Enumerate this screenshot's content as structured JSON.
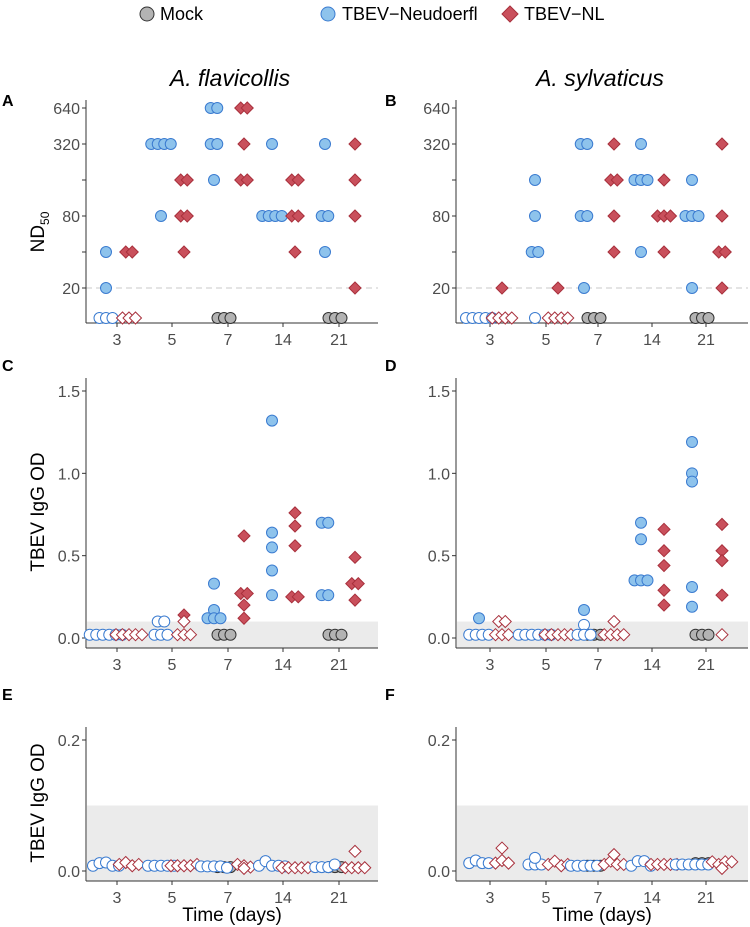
{
  "chart_data": {
    "type": "scatter",
    "legend": [
      {
        "name": "Mock",
        "shape": "circle",
        "fill": "#b3b3b3",
        "stroke": "#333333"
      },
      {
        "name": "TBEV−Neudoerfl",
        "shape": "circle",
        "fill": "#8ec3ec",
        "stroke": "#3a7bd0"
      },
      {
        "name": "TBEV−NL",
        "shape": "diamond",
        "fill": "#c9505c",
        "stroke": "#a8303c"
      }
    ],
    "legend_position": "top",
    "days": [
      "3",
      "5",
      "7",
      "14",
      "21"
    ],
    "xlabel": "Time (days)",
    "panels": [
      {
        "id": "A",
        "title": "A. flavicollis",
        "ylabel": "ND",
        "ylabel_sub": "50",
        "scale": "log2",
        "yticks": [
          20,
          40,
          80,
          160,
          320,
          640
        ],
        "ytick_labels": [
          "20",
          "",
          "80",
          "",
          "320",
          "640"
        ],
        "threshold_line": 20,
        "open_means": "below detection",
        "points": {
          "Mock": {
            "7": {
              "filled": [
                10,
                10,
                10
              ]
            },
            "21": {
              "filled": [
                10,
                10,
                10
              ]
            }
          },
          "Neudoerfl": {
            "3": {
              "filled": [
                40,
                20
              ],
              "open": [
                10,
                10,
                10
              ]
            },
            "5": {
              "filled": [
                320,
                320,
                320,
                320,
                80
              ]
            },
            "7": {
              "filled": [
                640,
                640,
                320,
                320,
                160
              ]
            },
            "14": {
              "filled": [
                320,
                80,
                80,
                80,
                80
              ]
            },
            "21": {
              "filled": [
                320,
                80,
                80,
                40
              ]
            }
          },
          "NL": {
            "3": {
              "filled": [
                40,
                40
              ],
              "open": [
                10,
                10,
                10
              ]
            },
            "5": {
              "filled": [
                160,
                160,
                80,
                80,
                40
              ]
            },
            "7": {
              "filled": [
                640,
                640,
                320,
                160,
                160
              ]
            },
            "14": {
              "filled": [
                160,
                160,
                80,
                80,
                40
              ]
            },
            "21": {
              "filled": [
                320,
                160,
                80,
                20
              ]
            }
          }
        }
      },
      {
        "id": "B",
        "title": "A. sylvaticus",
        "ylabel": "",
        "scale": "log2",
        "yticks": [
          20,
          40,
          80,
          160,
          320,
          640
        ],
        "ytick_labels": [
          "20",
          "",
          "80",
          "",
          "320",
          "640"
        ],
        "threshold_line": 20,
        "points": {
          "Mock": {
            "7": {
              "filled": [
                10,
                10,
                10
              ]
            },
            "21": {
              "filled": [
                10,
                10,
                10
              ]
            }
          },
          "Neudoerfl": {
            "3": {
              "open": [
                10,
                10,
                10,
                10,
                10
              ]
            },
            "5": {
              "filled": [
                160,
                80,
                40,
                40
              ],
              "open": [
                10
              ]
            },
            "7": {
              "filled": [
                320,
                320,
                80,
                80,
                20
              ]
            },
            "14": {
              "filled": [
                320,
                160,
                160,
                160,
                40
              ]
            },
            "21": {
              "filled": [
                160,
                80,
                80,
                80,
                20
              ]
            }
          },
          "NL": {
            "3": {
              "filled": [
                20
              ],
              "open": [
                10,
                10,
                10,
                10
              ]
            },
            "5": {
              "filled": [
                20
              ],
              "open": [
                10,
                10,
                10,
                10
              ]
            },
            "7": {
              "filled": [
                320,
                160,
                160,
                80,
                40
              ]
            },
            "14": {
              "filled": [
                160,
                80,
                80,
                80,
                40
              ]
            },
            "21": {
              "filled": [
                320,
                80,
                40,
                40,
                20
              ]
            }
          }
        }
      },
      {
        "id": "C",
        "title": "",
        "ylabel": "TBEV IgG OD",
        "scale": "linear",
        "ylim": [
          0,
          1.5
        ],
        "yticks": [
          0,
          0.5,
          1.0,
          1.5
        ],
        "ytick_labels": [
          "0.0",
          "0.5",
          "1.0",
          "1.5"
        ],
        "cutoff_band": [
          0,
          0.1
        ],
        "points": {
          "Mock": {
            "7": {
              "filled": [
                0.02,
                0.02,
                0.02
              ]
            },
            "21": {
              "filled": [
                0.02,
                0.02,
                0.02
              ]
            }
          },
          "Neudoerfl": {
            "3": {
              "open": [
                0.02,
                0.02,
                0.02,
                0.02,
                0.02,
                0.02
              ]
            },
            "5": {
              "open": [
                0.1,
                0.1,
                0.02,
                0.02,
                0.02
              ]
            },
            "7": {
              "filled": [
                0.33,
                0.17,
                0.12,
                0.12,
                0.12
              ]
            },
            "14": {
              "filled": [
                1.32,
                0.64,
                0.55,
                0.41,
                0.26
              ]
            },
            "21": {
              "filled": [
                0.7,
                0.7,
                0.26,
                0.26
              ]
            }
          },
          "NL": {
            "3": {
              "open": [
                0.02,
                0.02,
                0.02,
                0.02,
                0.02
              ]
            },
            "5": {
              "filled": [
                0.14
              ],
              "open": [
                0.1,
                0.02,
                0.02,
                0.02
              ]
            },
            "7": {
              "filled": [
                0.62,
                0.27,
                0.27,
                0.2,
                0.12
              ]
            },
            "14": {
              "filled": [
                0.76,
                0.68,
                0.56,
                0.25,
                0.25
              ]
            },
            "21": {
              "filled": [
                0.49,
                0.33,
                0.33,
                0.23
              ]
            }
          }
        }
      },
      {
        "id": "D",
        "title": "",
        "ylabel": "",
        "scale": "linear",
        "ylim": [
          0,
          1.5
        ],
        "yticks": [
          0,
          0.5,
          1.0,
          1.5
        ],
        "ytick_labels": [
          "0.0",
          "0.5",
          "1.0",
          "1.5"
        ],
        "cutoff_band": [
          0,
          0.1
        ],
        "points": {
          "Mock": {
            "7": {
              "filled": [
                0.02,
                0.02,
                0.02
              ]
            },
            "21": {
              "filled": [
                0.02,
                0.02,
                0.02
              ]
            }
          },
          "Neudoerfl": {
            "3": {
              "filled": [
                0.12
              ],
              "open": [
                0.02,
                0.02,
                0.02,
                0.02
              ]
            },
            "5": {
              "open": [
                0.02,
                0.02,
                0.02,
                0.02,
                0.02,
                0.02
              ]
            },
            "7": {
              "filled": [
                0.17
              ],
              "open": [
                0.08,
                0.02,
                0.02,
                0.02
              ]
            },
            "14": {
              "filled": [
                0.7,
                0.6,
                0.35,
                0.35,
                0.35
              ]
            },
            "21": {
              "filled": [
                1.19,
                1.0,
                0.95,
                0.31,
                0.19
              ]
            }
          },
          "NL": {
            "3": {
              "open": [
                0.1,
                0.1,
                0.02,
                0.02,
                0.02
              ]
            },
            "5": {
              "open": [
                0.02,
                0.02,
                0.02,
                0.02,
                0.02
              ]
            },
            "7": {
              "open": [
                0.1,
                0.02,
                0.02,
                0.02,
                0.02
              ]
            },
            "14": {
              "filled": [
                0.66,
                0.53,
                0.44,
                0.29,
                0.2
              ]
            },
            "21": {
              "filled": [
                0.69,
                0.53,
                0.47,
                0.26
              ],
              "open": [
                0.02
              ]
            }
          }
        }
      },
      {
        "id": "E",
        "title": "",
        "ylabel": "TBEV IgG OD",
        "scale": "linear",
        "ylim": [
          0,
          0.2
        ],
        "yticks": [
          0,
          0.2
        ],
        "ytick_labels": [
          "0.0",
          "0.2"
        ],
        "cutoff_band": [
          0,
          0.1
        ],
        "points": {
          "Mock": {
            "7": {
              "filled": [
                0.006,
                0.006,
                0.006
              ]
            },
            "21": {
              "filled": [
                0.006,
                0.006,
                0.006
              ]
            }
          },
          "Neudoerfl": {
            "3": {
              "open": [
                0.008,
                0.012,
                0.013,
                0.008,
                0.008
              ]
            },
            "5": {
              "open": [
                0.008,
                0.008,
                0.008,
                0.008,
                0.008
              ]
            },
            "7": {
              "open": [
                0.007,
                0.007,
                0.007,
                0.007,
                0.005
              ]
            },
            "14": {
              "open": [
                0.008,
                0.015,
                0.008,
                0.008,
                0.007
              ]
            },
            "21": {
              "open": [
                0.006,
                0.006,
                0.006,
                0.01
              ]
            }
          },
          "NL": {
            "3": {
              "open": [
                0.01,
                0.013,
                0.008,
                0.01
              ]
            },
            "5": {
              "open": [
                0.008,
                0.008,
                0.008,
                0.008,
                0.01
              ]
            },
            "7": {
              "open": [
                0.01,
                0.008,
                0.006,
                0.004
              ]
            },
            "14": {
              "open": [
                0.005,
                0.005,
                0.005,
                0.005,
                0.005
              ]
            },
            "21": {
              "open": [
                0.005,
                0.005,
                0.005,
                0.005,
                0.03
              ]
            }
          }
        }
      },
      {
        "id": "F",
        "title": "",
        "ylabel": "",
        "scale": "linear",
        "ylim": [
          0,
          0.2
        ],
        "yticks": [
          0,
          0.2
        ],
        "ytick_labels": [
          "0.0",
          "0.2"
        ],
        "cutoff_band": [
          0,
          0.1
        ],
        "points": {
          "Mock": {
            "7": {
              "filled": [
                0.008,
                0.008,
                0.008
              ]
            },
            "21": {
              "filled": [
                0.012,
                0.012,
                0.012
              ]
            }
          },
          "Neudoerfl": {
            "3": {
              "open": [
                0.012,
                0.016,
                0.012,
                0.012
              ]
            },
            "5": {
              "open": [
                0.01,
                0.02,
                0.01,
                0.01
              ]
            },
            "7": {
              "open": [
                0.008,
                0.008,
                0.008,
                0.008,
                0.008
              ]
            },
            "14": {
              "open": [
                0.008,
                0.015,
                0.015,
                0.008
              ]
            },
            "21": {
              "open": [
                0.01,
                0.01,
                0.01,
                0.01,
                0.01,
                0.01
              ]
            }
          },
          "NL": {
            "3": {
              "open": [
                0.012,
                0.016,
                0.035,
                0.012
              ]
            },
            "5": {
              "open": [
                0.01,
                0.015,
                0.008,
                0.01
              ]
            },
            "7": {
              "open": [
                0.01,
                0.025,
                0.015,
                0.01,
                0.01
              ]
            },
            "14": {
              "open": [
                0.01,
                0.01,
                0.01,
                0.01,
                0.01
              ]
            },
            "21": {
              "open": [
                0.014,
                0.01,
                0.004,
                0.014,
                0.014
              ]
            }
          }
        }
      }
    ]
  }
}
